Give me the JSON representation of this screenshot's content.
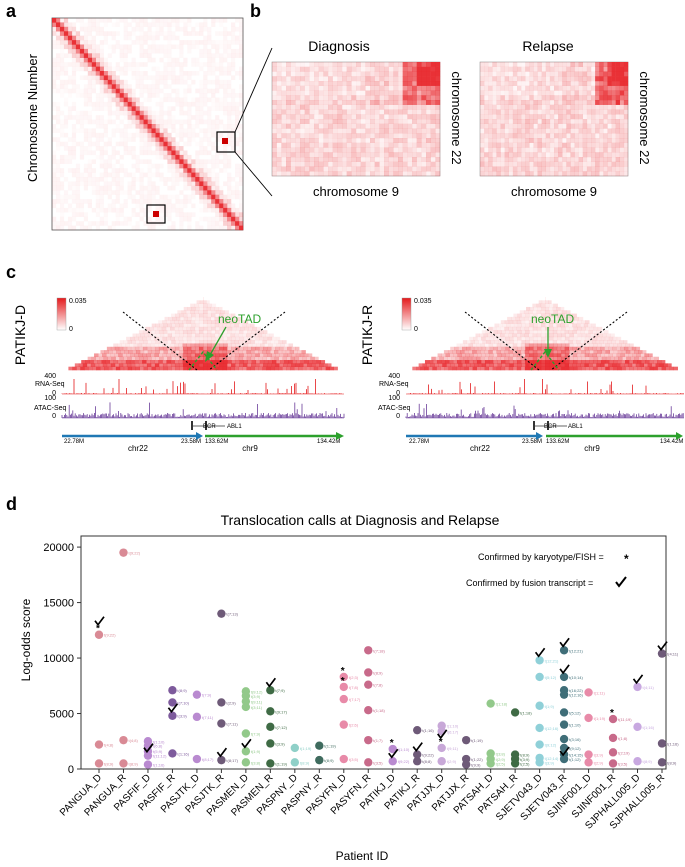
{
  "panels": {
    "a": {
      "label": "a",
      "ylabel": "Chromosome Number"
    },
    "b": {
      "label": "b",
      "maps": [
        {
          "title": "Diagnosis",
          "xlabel": "chromosome 9",
          "ylabel": "chromosome 22"
        },
        {
          "title": "Relapse",
          "xlabel": "chromosome 9",
          "ylabel": "chromosome 22"
        }
      ]
    },
    "c": {
      "label": "c",
      "tracks": [
        {
          "sample": "PATIKJ-D",
          "scale_max": "0.035",
          "scale_min": "0",
          "annotation": "neoTAD",
          "rna_label": "RNA-Seq",
          "rna_max": "400",
          "rna_min": "0",
          "atac_label": "ATAC-Seq",
          "atac_max": "100",
          "atac_min": "0",
          "gene_left": "BCR",
          "gene_right": "ABL1",
          "coord_left": "22.78M",
          "coord_mid_left": "23.58M",
          "coord_mid_right": "133.62M",
          "coord_right": "134.42M",
          "chr_left": "chr22",
          "chr_right": "chr9"
        },
        {
          "sample": "PATIKJ-R",
          "scale_max": "0.035",
          "scale_min": "0",
          "annotation": "neoTAD",
          "rna_label": "RNA-Seq",
          "rna_max": "400",
          "rna_min": "0",
          "atac_label": "ATAC-Seq",
          "atac_max": "100",
          "atac_min": "0",
          "gene_left": "BCR",
          "gene_right": "ABL1",
          "coord_left": "22.78M",
          "coord_mid_left": "23.58M",
          "coord_mid_right": "133.62M",
          "coord_right": "134.42M",
          "chr_left": "chr22",
          "chr_right": "chr9"
        }
      ]
    },
    "d": {
      "label": "d"
    }
  },
  "colors": {
    "heat": "#e8262b",
    "rna": "#e41a1c",
    "atac": "#6a3d9a",
    "chr22": "#1f78b4",
    "chr9": "#2ca02c",
    "neotad": "#2ca02c"
  },
  "chart_data": {
    "type": "scatter",
    "title": "Translocation calls at Diagnosis and Relapse",
    "xlabel": "Patient ID",
    "ylabel": "Log-odds score",
    "ylim": [
      0,
      21000
    ],
    "yticks": [
      0,
      5000,
      10000,
      15000,
      20000
    ],
    "legend": {
      "position": "top-right",
      "karyotype_label": "Confirmed by karyotype/FISH =",
      "karyotype_marker": "*",
      "fusion_label": "Confirmed by fusion transcript ="
    },
    "categories": [
      "PANGUA_D",
      "PANGUA_R",
      "PASFIF_D",
      "PASFIF_R",
      "PASJTK_D",
      "PASJTK_R",
      "PASMEN_D",
      "PASMEN_R",
      "PASPNY_D",
      "PASPNY_R",
      "PASYFN_D",
      "PASYFN_R",
      "PATIKJ_D",
      "PATIKJ_R",
      "PATJJX_D",
      "PATJJX_R",
      "PATSAH_D",
      "PATSAH_R",
      "SJETV043_D",
      "SJETV043_R",
      "SJINF001_D",
      "SJINF001_R",
      "SJPHALL005_D",
      "SJPHALL005_R"
    ],
    "category_colors": [
      "#d98a95",
      "#d98a95",
      "#b98ad0",
      "#7d5a9c",
      "#b98ad0",
      "#6e5a78",
      "#92c98a",
      "#3f6b45",
      "#8fd0c8",
      "#3f6b5e",
      "#e88aa8",
      "#c86a8a",
      "#b98ad0",
      "#6e5a78",
      "#c8a8d8",
      "#6e5a78",
      "#92c98a",
      "#3f6b45",
      "#8fd0d8",
      "#3f6e78",
      "#e88aa8",
      "#c86a8a",
      "#c8a8e0",
      "#6e5a78"
    ],
    "points": [
      {
        "cat": 0,
        "y": 12100,
        "label": "t(9;22)",
        "fish": true,
        "fusion": true
      },
      {
        "cat": 0,
        "y": 2200,
        "label": "t(4;8)"
      },
      {
        "cat": 0,
        "y": 500,
        "label": "t(8;9)"
      },
      {
        "cat": 1,
        "y": 19500,
        "label": "t(9;22)"
      },
      {
        "cat": 1,
        "y": 2600,
        "label": "t(4;8)"
      },
      {
        "cat": 1,
        "y": 500,
        "label": "t(8;9)"
      },
      {
        "cat": 2,
        "y": 2500,
        "label": "t(1;10)"
      },
      {
        "cat": 2,
        "y": 2100,
        "label": "t(6;8)"
      },
      {
        "cat": 2,
        "y": 1600,
        "label": "t(5;9)"
      },
      {
        "cat": 2,
        "y": 1200,
        "label": "t(11;12)",
        "fusion": true
      },
      {
        "cat": 2,
        "y": 400,
        "label": "t(1;16)"
      },
      {
        "cat": 3,
        "y": 7100,
        "label": "t(8;9)"
      },
      {
        "cat": 3,
        "y": 6000,
        "label": "t(7;10)"
      },
      {
        "cat": 3,
        "y": 4800,
        "label": "t(3;9)",
        "fusion": true
      },
      {
        "cat": 3,
        "y": 1400,
        "label": "t(1;16)"
      },
      {
        "cat": 4,
        "y": 6700,
        "label": "t(7;9)"
      },
      {
        "cat": 4,
        "y": 4700,
        "label": "t(7;11)"
      },
      {
        "cat": 4,
        "y": 900,
        "label": "t(8;17)"
      },
      {
        "cat": 5,
        "y": 14000,
        "label": "t(7;13)"
      },
      {
        "cat": 5,
        "y": 6000,
        "label": "t(2;9)"
      },
      {
        "cat": 5,
        "y": 4100,
        "label": "t(7;11)"
      },
      {
        "cat": 5,
        "y": 800,
        "label": "t(8;17)",
        "fusion": true
      },
      {
        "cat": 6,
        "y": 7000,
        "label": "t(9;12)"
      },
      {
        "cat": 6,
        "y": 6600,
        "label": "t(3;9)"
      },
      {
        "cat": 6,
        "y": 6100,
        "label": "t(9;11)"
      },
      {
        "cat": 6,
        "y": 5600,
        "label": "t(3;11)"
      },
      {
        "cat": 6,
        "y": 3200,
        "label": "t(7;9)"
      },
      {
        "cat": 6,
        "y": 1600,
        "label": "t(1;9)",
        "fusion": true
      },
      {
        "cat": 6,
        "y": 600,
        "label": "t(3;8)"
      },
      {
        "cat": 7,
        "y": 7100,
        "label": "t(7;9)",
        "fusion": true
      },
      {
        "cat": 7,
        "y": 5200,
        "label": "t(9;17)"
      },
      {
        "cat": 7,
        "y": 3800,
        "label": "t(7;12)"
      },
      {
        "cat": 7,
        "y": 2300,
        "label": "t(3;9)"
      },
      {
        "cat": 7,
        "y": 500,
        "label": "t(1;19)"
      },
      {
        "cat": 8,
        "y": 1900,
        "label": "t(1;19)"
      },
      {
        "cat": 8,
        "y": 600,
        "label": "t(8;9)"
      },
      {
        "cat": 9,
        "y": 2100,
        "label": "t(1;19)"
      },
      {
        "cat": 9,
        "y": 800,
        "label": "t(8;9)"
      },
      {
        "cat": 10,
        "y": 8300,
        "label": "t(2;3)",
        "fish": true
      },
      {
        "cat": 10,
        "y": 7400,
        "label": "t(7;8)",
        "fish": true
      },
      {
        "cat": 10,
        "y": 6300,
        "label": "t(7;17)"
      },
      {
        "cat": 10,
        "y": 4000,
        "label": "t(2;6)"
      },
      {
        "cat": 10,
        "y": 900,
        "label": "t(3;5)"
      },
      {
        "cat": 11,
        "y": 10700,
        "label": "t(7;18)"
      },
      {
        "cat": 11,
        "y": 8700,
        "label": "t(8;9)"
      },
      {
        "cat": 11,
        "y": 7600,
        "label": "t(7;8)"
      },
      {
        "cat": 11,
        "y": 5300,
        "label": "t(1;18)"
      },
      {
        "cat": 11,
        "y": 2600,
        "label": "t(1;7)"
      },
      {
        "cat": 11,
        "y": 600,
        "label": "t(3;5)"
      },
      {
        "cat": 12,
        "y": 1800,
        "label": "t(1;10)",
        "fish": true
      },
      {
        "cat": 12,
        "y": 700,
        "label": "t(9;22)",
        "fusion": true
      },
      {
        "cat": 13,
        "y": 3500,
        "label": "t(1;16)"
      },
      {
        "cat": 13,
        "y": 1300,
        "label": "t(9;22)",
        "fusion": true
      },
      {
        "cat": 13,
        "y": 700,
        "label": "t(8;8)"
      },
      {
        "cat": 14,
        "y": 3900,
        "label": "t(1;10)"
      },
      {
        "cat": 14,
        "y": 3400,
        "label": "t(6;17)"
      },
      {
        "cat": 14,
        "y": 1900,
        "label": "t(9;11)",
        "fish": true,
        "fusion": true
      },
      {
        "cat": 14,
        "y": 700,
        "label": "t(2;9)"
      },
      {
        "cat": 15,
        "y": 2600,
        "label": "t(1;19)"
      },
      {
        "cat": 15,
        "y": 900,
        "label": "t(1;22)"
      },
      {
        "cat": 15,
        "y": 400,
        "label": "t(9;9)"
      },
      {
        "cat": 16,
        "y": 5900,
        "label": "t(1;18)"
      },
      {
        "cat": 16,
        "y": 1400,
        "label": "t(3;8)"
      },
      {
        "cat": 16,
        "y": 900,
        "label": "t(2;9)"
      },
      {
        "cat": 16,
        "y": 500,
        "label": "t(2;5)"
      },
      {
        "cat": 17,
        "y": 5100,
        "label": "t(1;18)"
      },
      {
        "cat": 17,
        "y": 1300,
        "label": "t(8;9)"
      },
      {
        "cat": 17,
        "y": 900,
        "label": "t(3;9)"
      },
      {
        "cat": 17,
        "y": 500,
        "label": "t(2;5)"
      },
      {
        "cat": 18,
        "y": 9800,
        "label": "t(12;21)",
        "fusion": true
      },
      {
        "cat": 18,
        "y": 8300,
        "label": "t(5;12)"
      },
      {
        "cat": 18,
        "y": 5700,
        "label": "t(1;9)"
      },
      {
        "cat": 18,
        "y": 3700,
        "label": "t(12;16)"
      },
      {
        "cat": 18,
        "y": 2200,
        "label": "t(9;12)"
      },
      {
        "cat": 18,
        "y": 1000,
        "label": "t(12;14)"
      },
      {
        "cat": 18,
        "y": 600,
        "label": "t(3;9)"
      },
      {
        "cat": 19,
        "y": 10700,
        "label": "t(12;21)",
        "fusion": true
      },
      {
        "cat": 19,
        "y": 8300,
        "label": "t(10;14)",
        "fusion": true
      },
      {
        "cat": 19,
        "y": 7100,
        "label": "t(16;22)"
      },
      {
        "cat": 19,
        "y": 6700,
        "label": "t(12;16)"
      },
      {
        "cat": 19,
        "y": 5100,
        "label": "t(5;12)"
      },
      {
        "cat": 19,
        "y": 4000,
        "label": "t(1;10)"
      },
      {
        "cat": 19,
        "y": 2700,
        "label": "t(3;16)"
      },
      {
        "cat": 19,
        "y": 1900,
        "label": "t(9;12)"
      },
      {
        "cat": 19,
        "y": 1300,
        "label": "t(14;15)"
      },
      {
        "cat": 19,
        "y": 900,
        "label": "t(1;12)",
        "fusion": true
      },
      {
        "cat": 20,
        "y": 6900,
        "label": "t(1;11)"
      },
      {
        "cat": 20,
        "y": 4600,
        "label": "t(1;19)"
      },
      {
        "cat": 20,
        "y": 1300,
        "label": "t(3;9)"
      },
      {
        "cat": 20,
        "y": 600,
        "label": "t(2;9)"
      },
      {
        "cat": 21,
        "y": 4500,
        "label": "t(11;19)",
        "fish": true
      },
      {
        "cat": 21,
        "y": 2800,
        "label": "t(1;8)"
      },
      {
        "cat": 21,
        "y": 1500,
        "label": "t(2;19)"
      },
      {
        "cat": 21,
        "y": 500,
        "label": "t(3;5)"
      },
      {
        "cat": 22,
        "y": 7400,
        "label": "t(4;11)",
        "fusion": true
      },
      {
        "cat": 22,
        "y": 3800,
        "label": "t(1;16)"
      },
      {
        "cat": 22,
        "y": 700,
        "label": "t(8;9)"
      },
      {
        "cat": 23,
        "y": 10400,
        "label": "t(4;11)",
        "fusion": true
      },
      {
        "cat": 23,
        "y": 2300,
        "label": "t(1;16)"
      },
      {
        "cat": 23,
        "y": 600,
        "label": "t(8;9)"
      }
    ]
  }
}
